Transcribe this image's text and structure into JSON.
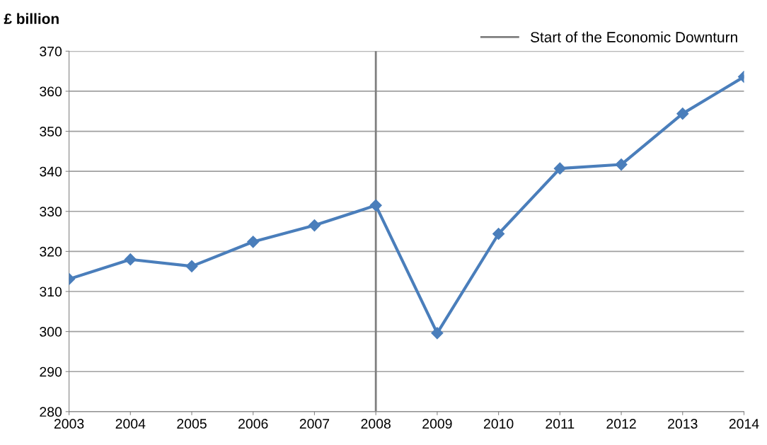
{
  "chart_data": {
    "type": "line",
    "ylabel": "£ billion",
    "x": [
      2003,
      2004,
      2005,
      2006,
      2007,
      2008,
      2009,
      2010,
      2011,
      2012,
      2013,
      2014
    ],
    "series": [
      {
        "color": "#4a7ebb",
        "values": [
          313.1,
          318.0,
          316.3,
          322.4,
          326.5,
          331.5,
          299.6,
          324.4,
          340.7,
          341.7,
          354.4,
          363.6
        ]
      }
    ],
    "xlim": [
      2003,
      2014
    ],
    "xticks": [
      2003,
      2004,
      2005,
      2006,
      2007,
      2008,
      2009,
      2010,
      2011,
      2012,
      2013,
      2014
    ],
    "ylim": [
      280,
      370
    ],
    "yticks": [
      280,
      290,
      300,
      310,
      320,
      330,
      340,
      350,
      360,
      370
    ],
    "ref_lines": [
      {
        "axis": "x",
        "value": 2008,
        "label": "Start of the Economic Downturn",
        "color": "#7f7f7f"
      }
    ],
    "grid": "y",
    "legend": "top right",
    "marker": "diamond",
    "line_style": "solid"
  }
}
